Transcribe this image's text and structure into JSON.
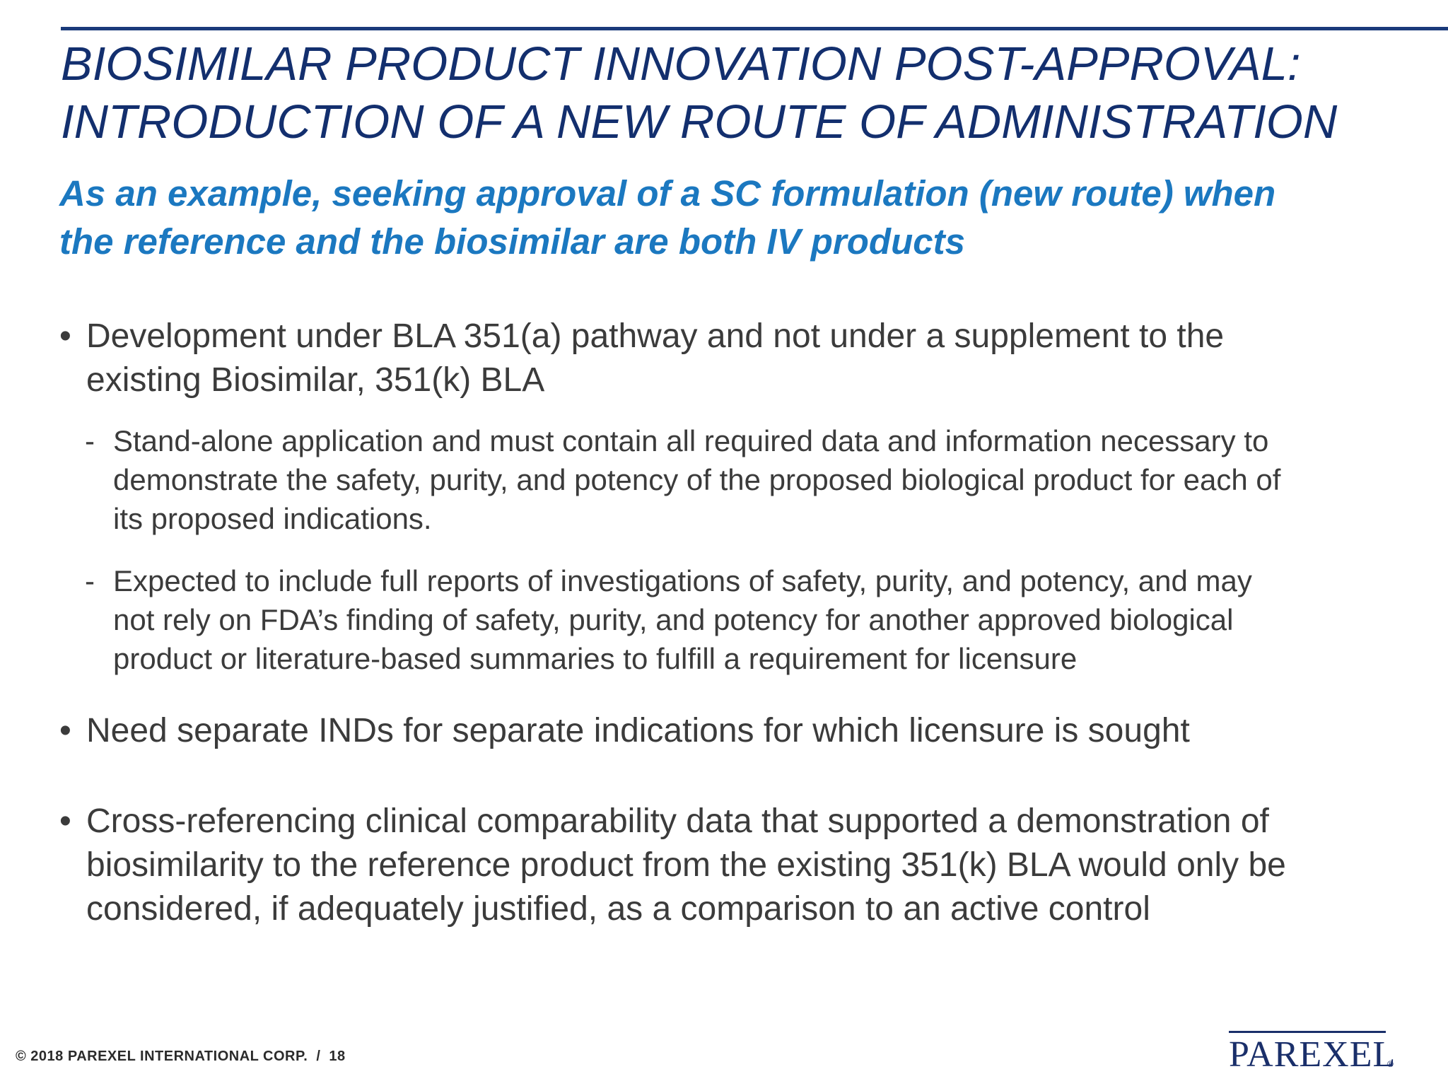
{
  "slide": {
    "title_lines": [
      "BIOSIMILAR PRODUCT INNOVATION POST-APPROVAL:",
      "INTRODUCTION OF A NEW ROUTE OF ADMINISTRATION"
    ],
    "subtitle_lines": [
      "As an example, seeking approval of a SC formulation (new route) when",
      "the reference and the biosimilar are both IV products"
    ],
    "bullet_marker": "•",
    "sub_marker": "-",
    "bullets": [
      {
        "lines": [
          "Development under BLA 351(a) pathway and not under a supplement to the",
          "existing Biosimilar, 351(k) BLA"
        ],
        "subs": [
          {
            "lines": [
              "Stand-alone application and must contain all required data and information necessary to",
              "demonstrate the safety, purity, and potency of the proposed biological product for each of",
              "its proposed indications."
            ]
          },
          {
            "lines": [
              "Expected to include full reports of investigations of safety, purity, and potency, and may",
              "not rely on FDA’s finding of safety, purity, and potency for another approved biological",
              "product or literature-based summaries to fulfill a requirement for licensure"
            ]
          }
        ]
      },
      {
        "lines": [
          "Need separate INDs for separate indications for which licensure is sought"
        ]
      },
      {
        "lines": [
          "Cross-referencing clinical comparability data that supported a demonstration of",
          "biosimilarity to the reference product from the existing 351(k) BLA would only be",
          "considered, if adequately justified, as a comparison to an active control"
        ]
      }
    ]
  },
  "footer": {
    "copyright": "© 2018 PAREXEL INTERNATIONAL CORP.",
    "separator": "/",
    "page_number": "18"
  },
  "logo": {
    "text": "PAREXEL",
    "registered_mark": "®"
  },
  "colors": {
    "title": "#132f6e",
    "subtitle": "#1b78c0",
    "body_text": "#3b3b3b",
    "rule": "#1a3a7a"
  }
}
